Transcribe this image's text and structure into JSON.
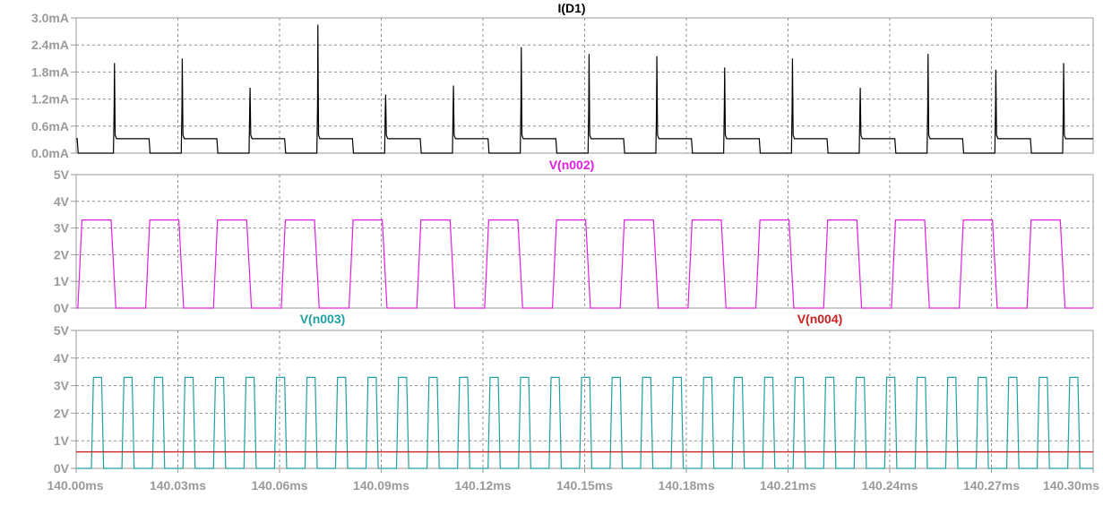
{
  "chart_data": [
    {
      "type": "line",
      "title": "I(D1)",
      "title_color": "#000000",
      "y_ticks": [
        "3.0mA",
        "2.4mA",
        "1.8mA",
        "1.2mA",
        "0.6mA",
        "0.0mA"
      ],
      "ylim": [
        0,
        3.0
      ],
      "xlim": [
        140.0,
        140.3
      ],
      "grid": true,
      "series": [
        {
          "name": "I(D1)",
          "color": "#000000",
          "period_ms": 0.02,
          "plateau_mA": 0.32,
          "rise_ms": [
            140.011,
            140.031,
            140.051,
            140.071,
            140.091,
            140.111,
            140.131,
            140.151,
            140.171,
            140.191,
            140.211,
            140.231,
            140.251,
            140.271,
            140.291
          ],
          "spike_peaks_mA": [
            2.0,
            2.1,
            1.45,
            2.85,
            1.3,
            1.5,
            2.35,
            2.2,
            2.15,
            1.9,
            2.1,
            1.45,
            2.2,
            1.85,
            2.0
          ]
        }
      ]
    },
    {
      "type": "line",
      "title": "V(n002)",
      "title_color": "#e020e0",
      "y_ticks": [
        "5V",
        "4V",
        "3V",
        "2V",
        "1V",
        "0V"
      ],
      "ylim": [
        0,
        5
      ],
      "xlim": [
        140.0,
        140.3
      ],
      "grid": true,
      "series": [
        {
          "name": "V(n002)",
          "color": "#e020e0",
          "period_ms": 0.02,
          "high_V": 3.3,
          "low_V": 0,
          "first_rise_ms": 140.0005
        }
      ]
    },
    {
      "type": "line",
      "titles": [
        "V(n003)",
        "V(n004)"
      ],
      "y_ticks": [
        "5V",
        "4V",
        "3V",
        "2V",
        "1V",
        "0V"
      ],
      "ylim": [
        0,
        5
      ],
      "xlim": [
        140.0,
        140.3
      ],
      "x_ticks": [
        "140.00ms",
        "140.03ms",
        "140.06ms",
        "140.09ms",
        "140.12ms",
        "140.15ms",
        "140.18ms",
        "140.21ms",
        "140.24ms",
        "140.27ms",
        "140.30ms"
      ],
      "grid": true,
      "series": [
        {
          "name": "V(n003)",
          "color": "#20a0a0",
          "period_ms": 0.009,
          "pulse_width_ms": 0.003,
          "high_V": 3.3,
          "first_rise_ms": 140.0045
        },
        {
          "name": "V(n004)",
          "color": "#cc2020",
          "constant_V": 0.6
        }
      ]
    }
  ]
}
